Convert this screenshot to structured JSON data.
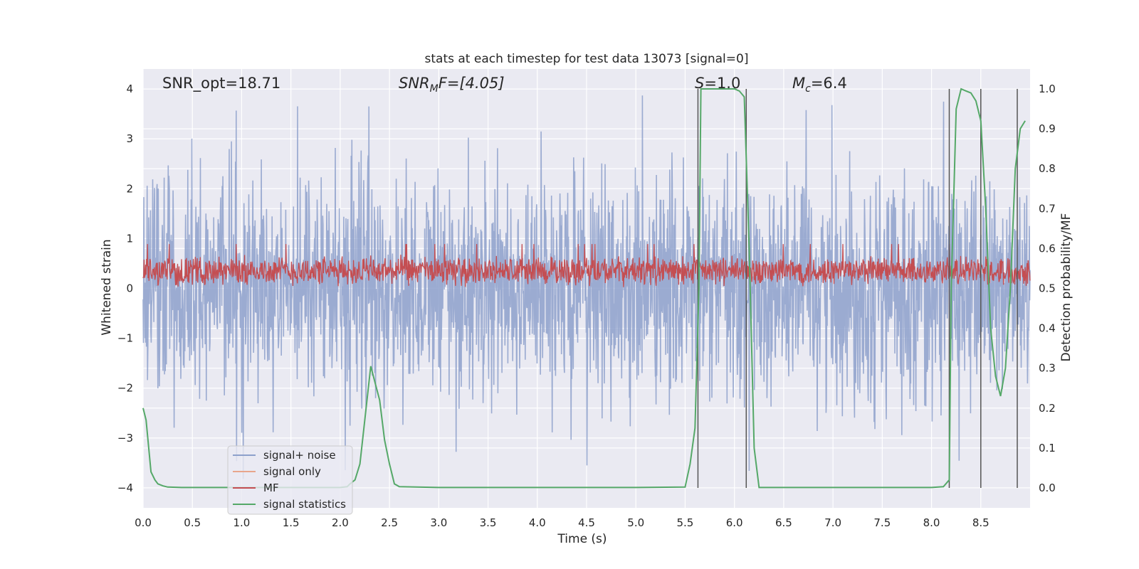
{
  "chart_data": {
    "type": "line",
    "title": "stats at each timestep for test data 13073 [signal=0]",
    "xlabel": "Time (s)",
    "ylabel": "Whitened strain",
    "y2label": "Detection probability/MF",
    "xlim": [
      0,
      9
    ],
    "ylim": [
      -4.4,
      4.4
    ],
    "y2lim": [
      -0.05,
      1.05
    ],
    "xticks": [
      "0.0",
      "0.5",
      "1.0",
      "1.5",
      "2.0",
      "2.5",
      "3.0",
      "3.5",
      "4.0",
      "4.5",
      "5.0",
      "5.5",
      "6.0",
      "6.5",
      "7.0",
      "7.5",
      "8.0",
      "8.5"
    ],
    "yticks": [
      "4",
      "3",
      "2",
      "1",
      "0",
      "−1",
      "−2",
      "−3",
      "−4"
    ],
    "y2ticks": [
      "1.0",
      "0.9",
      "0.8",
      "0.7",
      "0.6",
      "0.5",
      "0.4",
      "0.3",
      "0.2",
      "0.1",
      "0.0"
    ],
    "grid": true,
    "legend_position": "lower-left",
    "annotations": {
      "snr_opt": "SNR_opt=18.71",
      "snr_mf_base": "SNR",
      "snr_mf_sub": "M",
      "snr_mf_rest": "F=[4.05]",
      "s_value": "S=1.0",
      "mc_base": "M",
      "mc_sub": "c",
      "mc_rest": "=6.4"
    },
    "series": [
      {
        "name": "signal+ noise",
        "color": "#8da0cb",
        "description_values": "dense noise, amplitude mostly within [-2.5, 2.5], peaks near ±3.9",
        "envelope": {
          "upper_typical": 2.2,
          "lower_typical": -2.2,
          "upper_peak": 3.9,
          "lower_peak": -4.0
        }
      },
      {
        "name": "signal only",
        "color": "#e8a58c",
        "values_note": "zero signal"
      },
      {
        "name": "MF",
        "color": "#c44e52",
        "envelope": {
          "center": 0.35,
          "half_range": 0.3,
          "peak": 1.0
        }
      },
      {
        "name": "signal statistics",
        "color": "#55a868",
        "axis": "right",
        "x": [
          0.0,
          0.03,
          0.08,
          0.12,
          0.15,
          0.2,
          0.25,
          0.4,
          1.0,
          1.5,
          2.0,
          2.07,
          2.1,
          2.15,
          2.2,
          2.31,
          2.4,
          2.45,
          2.5,
          2.55,
          2.6,
          3.0,
          3.5,
          4.0,
          4.5,
          5.0,
          5.5,
          5.55,
          5.6,
          5.64,
          5.66,
          5.7,
          5.75,
          5.8,
          5.9,
          6.0,
          6.05,
          6.1,
          6.15,
          6.2,
          6.25,
          6.3,
          7.0,
          7.5,
          8.0,
          8.12,
          8.18,
          8.2,
          8.25,
          8.3,
          8.35,
          8.4,
          8.45,
          8.5,
          8.55,
          8.6,
          8.65,
          8.7,
          8.75,
          8.8,
          8.85,
          8.9,
          8.95
        ],
        "y": [
          0.2,
          0.17,
          0.04,
          0.02,
          0.01,
          0.005,
          0.002,
          0.001,
          0.001,
          0.001,
          0.001,
          0.003,
          0.01,
          0.02,
          0.06,
          0.305,
          0.22,
          0.12,
          0.06,
          0.01,
          0.003,
          0.001,
          0.001,
          0.001,
          0.001,
          0.001,
          0.002,
          0.06,
          0.15,
          0.5,
          1.0,
          1.0,
          1.0,
          1.0,
          1.0,
          1.0,
          0.995,
          0.98,
          0.6,
          0.1,
          0.001,
          0.001,
          0.001,
          0.001,
          0.001,
          0.003,
          0.02,
          0.5,
          0.95,
          1.0,
          0.995,
          0.99,
          0.97,
          0.92,
          0.7,
          0.4,
          0.28,
          0.23,
          0.3,
          0.5,
          0.8,
          0.9,
          0.92
        ]
      }
    ],
    "vertical_markers_x": [
      5.63,
      6.12,
      8.18,
      8.5,
      8.87
    ],
    "marker_color": "#555555"
  }
}
